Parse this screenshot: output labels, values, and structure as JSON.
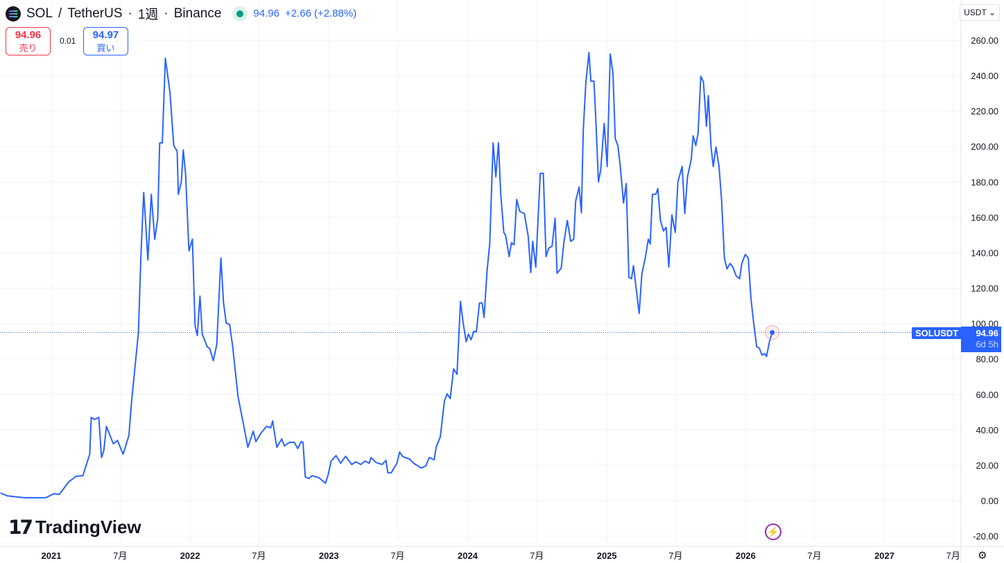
{
  "header": {
    "symbol": "SOL",
    "separator": "/",
    "quote_asset": "TetherUS",
    "interval": "1週",
    "exchange": "Binance",
    "last": "94.96",
    "change": "+2.66",
    "change_pct": "(+2.88%)"
  },
  "trade": {
    "sell_price": "94.96",
    "sell_label": "売り",
    "spread": "0.01",
    "buy_price": "94.97",
    "buy_label": "買い"
  },
  "currency": "USDT",
  "brand": "TradingView",
  "price_label": {
    "symbol": "SOLUSDT",
    "price": "94.96",
    "countdown": "6d 5h"
  },
  "colors": {
    "line": "#2962ff",
    "sell": "#f23645",
    "buy": "#2962ff",
    "live": "#089981"
  },
  "chart_data": {
    "type": "line",
    "interval": "1W",
    "ylim": [
      -25,
      270
    ],
    "y_ticks": [
      -20,
      0,
      20,
      40,
      60,
      80,
      100,
      120,
      140,
      160,
      180,
      200,
      220,
      240,
      260
    ],
    "x_ticks": [
      {
        "date": "2021-01-01",
        "label": "2021"
      },
      {
        "date": "2021-07-01",
        "label": "7月"
      },
      {
        "date": "2022-01-01",
        "label": "2022"
      },
      {
        "date": "2022-07-01",
        "label": "7月"
      },
      {
        "date": "2023-01-01",
        "label": "2023"
      },
      {
        "date": "2023-07-01",
        "label": "7月"
      },
      {
        "date": "2024-01-01",
        "label": "2024"
      },
      {
        "date": "2024-07-01",
        "label": "7月"
      },
      {
        "date": "2025-01-01",
        "label": "2025"
      },
      {
        "date": "2025-07-01",
        "label": "7月"
      },
      {
        "date": "2026-01-01",
        "label": "2026"
      },
      {
        "date": "2026-07-01",
        "label": "7月"
      },
      {
        "date": "2027-01-01",
        "label": "2027"
      },
      {
        "date": "2027-07-01",
        "label": "7月"
      }
    ],
    "last_value": 94.96,
    "grid": true,
    "points": [
      [
        "2020-08-20",
        4.3
      ],
      [
        "2020-09-07",
        2.7
      ],
      [
        "2020-10-22",
        1.6
      ],
      [
        "2020-12-17",
        1.6
      ],
      [
        "2021-01-08",
        3.9
      ],
      [
        "2021-01-22",
        3.5
      ],
      [
        "2021-02-16",
        10.6
      ],
      [
        "2021-03-07",
        13.7
      ],
      [
        "2021-03-25",
        14.1
      ],
      [
        "2021-04-12",
        26.2
      ],
      [
        "2021-04-16",
        47
      ],
      [
        "2021-04-25",
        45.8
      ],
      [
        "2021-05-06",
        47
      ],
      [
        "2021-05-13",
        24.3
      ],
      [
        "2021-05-19",
        28.2
      ],
      [
        "2021-05-26",
        41.9
      ],
      [
        "2021-06-13",
        32.1
      ],
      [
        "2021-06-24",
        34
      ],
      [
        "2021-07-09",
        26.2
      ],
      [
        "2021-07-24",
        36.8
      ],
      [
        "2021-07-31",
        55.6
      ],
      [
        "2021-08-18",
        94.8
      ],
      [
        "2021-08-25",
        139.8
      ],
      [
        "2021-09-01",
        174
      ],
      [
        "2021-09-12",
        135.9
      ],
      [
        "2021-09-21",
        173
      ],
      [
        "2021-09-30",
        147.6
      ],
      [
        "2021-10-08",
        159.4
      ],
      [
        "2021-10-13",
        202
      ],
      [
        "2021-10-20",
        202
      ],
      [
        "2021-10-28",
        249.8
      ],
      [
        "2021-11-09",
        230.6
      ],
      [
        "2021-11-19",
        200.5
      ],
      [
        "2021-11-28",
        197.3
      ],
      [
        "2021-12-01",
        173
      ],
      [
        "2021-12-09",
        180
      ],
      [
        "2021-12-14",
        198
      ],
      [
        "2021-12-20",
        184.8
      ],
      [
        "2021-12-29",
        141
      ],
      [
        "2022-01-07",
        147.6
      ],
      [
        "2022-01-14",
        98.7
      ],
      [
        "2022-01-20",
        93.2
      ],
      [
        "2022-01-27",
        115.5
      ],
      [
        "2022-02-02",
        94
      ],
      [
        "2022-02-15",
        86.9
      ],
      [
        "2022-02-22",
        85.7
      ],
      [
        "2022-03-03",
        79
      ],
      [
        "2022-03-12",
        88
      ],
      [
        "2022-03-23",
        137
      ],
      [
        "2022-03-30",
        111.6
      ],
      [
        "2022-04-06",
        100.2
      ],
      [
        "2022-04-15",
        99.5
      ],
      [
        "2022-04-23",
        86.9
      ],
      [
        "2022-05-07",
        58.7
      ],
      [
        "2022-05-20",
        44.6
      ],
      [
        "2022-06-02",
        30.1
      ],
      [
        "2022-06-16",
        39.2
      ],
      [
        "2022-06-23",
        33.3
      ],
      [
        "2022-07-06",
        38
      ],
      [
        "2022-07-21",
        41.9
      ],
      [
        "2022-08-01",
        41.1
      ],
      [
        "2022-08-06",
        45
      ],
      [
        "2022-08-17",
        30.1
      ],
      [
        "2022-08-30",
        34.8
      ],
      [
        "2022-09-06",
        30.9
      ],
      [
        "2022-09-19",
        32.9
      ],
      [
        "2022-10-02",
        32.9
      ],
      [
        "2022-10-11",
        29.4
      ],
      [
        "2022-10-20",
        33.3
      ],
      [
        "2022-10-25",
        32.9
      ],
      [
        "2022-10-31",
        13.3
      ],
      [
        "2022-11-09",
        12.5
      ],
      [
        "2022-11-18",
        14.1
      ],
      [
        "2022-12-06",
        12.9
      ],
      [
        "2022-12-23",
        9.8
      ],
      [
        "2022-12-30",
        14.5
      ],
      [
        "2023-01-07",
        22.3
      ],
      [
        "2023-01-20",
        25.4
      ],
      [
        "2023-02-01",
        21.1
      ],
      [
        "2023-02-14",
        25
      ],
      [
        "2023-03-02",
        20.4
      ],
      [
        "2023-03-13",
        21.9
      ],
      [
        "2023-03-26",
        20.4
      ],
      [
        "2023-04-06",
        22.3
      ],
      [
        "2023-04-17",
        21.1
      ],
      [
        "2023-04-22",
        24.3
      ],
      [
        "2023-05-05",
        21.5
      ],
      [
        "2023-05-21",
        20.4
      ],
      [
        "2023-05-31",
        22.7
      ],
      [
        "2023-06-05",
        15.7
      ],
      [
        "2023-06-14",
        15.7
      ],
      [
        "2023-06-29",
        21.1
      ],
      [
        "2023-07-06",
        27.4
      ],
      [
        "2023-07-15",
        24.7
      ],
      [
        "2023-08-01",
        23.5
      ],
      [
        "2023-08-12",
        21.1
      ],
      [
        "2023-09-01",
        18.4
      ],
      [
        "2023-09-13",
        19.6
      ],
      [
        "2023-09-22",
        24.3
      ],
      [
        "2023-10-05",
        23.1
      ],
      [
        "2023-10-10",
        30.1
      ],
      [
        "2023-10-21",
        36
      ],
      [
        "2023-11-01",
        56.4
      ],
      [
        "2023-11-08",
        60.3
      ],
      [
        "2023-11-16",
        57.6
      ],
      [
        "2023-11-25",
        74.4
      ],
      [
        "2023-12-04",
        71.3
      ],
      [
        "2023-12-13",
        112.4
      ],
      [
        "2023-12-20",
        100.6
      ],
      [
        "2023-12-28",
        89.7
      ],
      [
        "2024-01-03",
        94
      ],
      [
        "2024-01-10",
        90.8
      ],
      [
        "2024-01-17",
        95.5
      ],
      [
        "2024-01-24",
        95.5
      ],
      [
        "2024-02-01",
        111.6
      ],
      [
        "2024-02-08",
        111.6
      ],
      [
        "2024-02-13",
        103.4
      ],
      [
        "2024-02-21",
        130
      ],
      [
        "2024-02-28",
        144.9
      ],
      [
        "2024-03-08",
        202
      ],
      [
        "2024-03-15",
        182.9
      ],
      [
        "2024-03-22",
        202
      ],
      [
        "2024-03-28",
        173
      ],
      [
        "2024-04-05",
        151.5
      ],
      [
        "2024-04-10",
        149.6
      ],
      [
        "2024-04-19",
        137.8
      ],
      [
        "2024-04-25",
        145.6
      ],
      [
        "2024-05-02",
        144.5
      ],
      [
        "2024-05-09",
        170
      ],
      [
        "2024-05-17",
        163.3
      ],
      [
        "2024-05-29",
        162.1
      ],
      [
        "2024-06-08",
        149.6
      ],
      [
        "2024-06-15",
        128.8
      ],
      [
        "2024-06-20",
        146.4
      ],
      [
        "2024-06-28",
        131.9
      ],
      [
        "2024-07-10",
        184.8
      ],
      [
        "2024-07-18",
        184.8
      ],
      [
        "2024-07-25",
        137.8
      ],
      [
        "2024-08-01",
        142.5
      ],
      [
        "2024-08-10",
        143.7
      ],
      [
        "2024-08-18",
        159.4
      ],
      [
        "2024-08-23",
        128.4
      ],
      [
        "2024-09-03",
        131.2
      ],
      [
        "2024-09-10",
        145.6
      ],
      [
        "2024-09-19",
        158.2
      ],
      [
        "2024-09-28",
        146.4
      ],
      [
        "2024-10-06",
        147.6
      ],
      [
        "2024-10-11",
        169.1
      ],
      [
        "2024-10-20",
        177
      ],
      [
        "2024-10-26",
        162.5
      ],
      [
        "2024-10-31",
        209
      ],
      [
        "2024-11-07",
        236.5
      ],
      [
        "2024-11-15",
        253
      ],
      [
        "2024-11-20",
        236.9
      ],
      [
        "2024-11-28",
        236.9
      ],
      [
        "2024-12-03",
        215.3
      ],
      [
        "2024-12-10",
        180
      ],
      [
        "2024-12-16",
        186.8
      ],
      [
        "2024-12-25",
        213
      ],
      [
        "2025-01-02",
        188.7
      ],
      [
        "2025-01-10",
        252.2
      ],
      [
        "2025-01-17",
        241.6
      ],
      [
        "2025-01-23",
        204.4
      ],
      [
        "2025-01-30",
        200.5
      ],
      [
        "2025-02-05",
        189.5
      ],
      [
        "2025-02-14",
        168
      ],
      [
        "2025-02-21",
        179
      ],
      [
        "2025-02-28",
        126
      ],
      [
        "2025-03-07",
        125.3
      ],
      [
        "2025-03-12",
        132.7
      ],
      [
        "2025-03-20",
        118.2
      ],
      [
        "2025-03-27",
        105.7
      ],
      [
        "2025-04-03",
        128
      ],
      [
        "2025-04-12",
        137
      ],
      [
        "2025-04-20",
        147.6
      ],
      [
        "2025-04-25",
        144.9
      ],
      [
        "2025-05-01",
        173
      ],
      [
        "2025-05-10",
        173
      ],
      [
        "2025-05-15",
        176.2
      ],
      [
        "2025-05-22",
        158.2
      ],
      [
        "2025-05-30",
        152.3
      ],
      [
        "2025-06-06",
        154.3
      ],
      [
        "2025-06-13",
        131.9
      ],
      [
        "2025-06-21",
        161.3
      ],
      [
        "2025-06-30",
        151.5
      ],
      [
        "2025-07-07",
        180
      ],
      [
        "2025-07-18",
        188.7
      ],
      [
        "2025-07-25",
        162.1
      ],
      [
        "2025-08-01",
        182.9
      ],
      [
        "2025-08-11",
        192.6
      ],
      [
        "2025-08-16",
        206
      ],
      [
        "2025-08-23",
        200.5
      ],
      [
        "2025-08-29",
        207.5
      ],
      [
        "2025-09-05",
        239.6
      ],
      [
        "2025-09-12",
        236.5
      ],
      [
        "2025-09-20",
        211.4
      ],
      [
        "2025-09-25",
        228.7
      ],
      [
        "2025-10-02",
        199.7
      ],
      [
        "2025-10-08",
        188.7
      ],
      [
        "2025-10-15",
        199.7
      ],
      [
        "2025-10-23",
        188.7
      ],
      [
        "2025-10-30",
        169.1
      ],
      [
        "2025-11-06",
        137
      ],
      [
        "2025-11-13",
        130.8
      ],
      [
        "2025-11-21",
        133.9
      ],
      [
        "2025-11-28",
        132
      ],
      [
        "2025-12-07",
        126.9
      ],
      [
        "2025-12-16",
        125.3
      ],
      [
        "2025-12-22",
        133.9
      ],
      [
        "2025-12-31",
        139
      ],
      [
        "2026-01-08",
        137
      ],
      [
        "2026-01-15",
        114.3
      ],
      [
        "2026-01-22",
        100.6
      ],
      [
        "2026-01-30",
        86.9
      ],
      [
        "2026-02-06",
        86.1
      ],
      [
        "2026-02-13",
        82.2
      ],
      [
        "2026-02-20",
        83
      ],
      [
        "2026-02-25",
        81.4
      ],
      [
        "2026-03-05",
        90
      ],
      [
        "2026-03-12",
        94.96
      ]
    ]
  }
}
